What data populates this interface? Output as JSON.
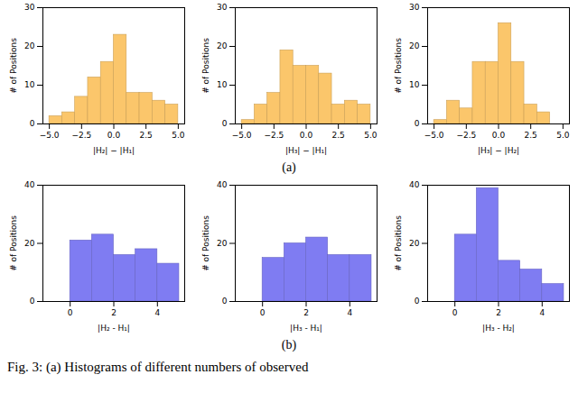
{
  "chart_data": [
    {
      "type": "histogram",
      "xlabel": "|H₂| − |H₁|",
      "ylabel": "# of Positions",
      "color": "#fbc66b",
      "bins": [
        -5,
        -4,
        -3,
        -2,
        -1,
        0,
        1,
        2,
        3,
        4,
        5
      ],
      "values": [
        2,
        3,
        7,
        12,
        16,
        23,
        8,
        8,
        6,
        5
      ],
      "xlim": [
        -5.5,
        5.5
      ],
      "ylim": [
        0,
        30
      ],
      "xticks": [
        {
          "value": -5,
          "label": "−5.0"
        },
        {
          "value": -2.5,
          "label": "−2.5"
        },
        {
          "value": 0,
          "label": "0.0"
        },
        {
          "value": 2.5,
          "label": "2.5"
        },
        {
          "value": 5,
          "label": "5.0"
        }
      ],
      "yticks": [
        0,
        10,
        20,
        30
      ]
    },
    {
      "type": "histogram",
      "xlabel": "|H₃| − |H₁|",
      "ylabel": "# of Positions",
      "color": "#fbc66b",
      "bins": [
        -5,
        -4,
        -3,
        -2,
        -1,
        0,
        1,
        2,
        3,
        4,
        5
      ],
      "values": [
        1,
        5,
        8,
        19,
        15,
        15,
        13,
        5,
        6,
        5
      ],
      "xlim": [
        -5.5,
        5.5
      ],
      "ylim": [
        0,
        30
      ],
      "xticks": [
        {
          "value": -5,
          "label": "−5.0"
        },
        {
          "value": -2.5,
          "label": "−2.5"
        },
        {
          "value": 0,
          "label": "0.0"
        },
        {
          "value": 2.5,
          "label": "2.5"
        },
        {
          "value": 5,
          "label": "5.0"
        }
      ],
      "yticks": [
        0,
        10,
        20,
        30
      ]
    },
    {
      "type": "histogram",
      "xlabel": "|H₃| − |H₂|",
      "ylabel": "# of Positions",
      "color": "#fbc66b",
      "bins": [
        -5,
        -4,
        -3,
        -2,
        -1,
        0,
        1,
        2,
        3,
        4
      ],
      "values": [
        1,
        6,
        4,
        16,
        16,
        26,
        16,
        5,
        3
      ],
      "xlim": [
        -5.5,
        5.5
      ],
      "ylim": [
        0,
        30
      ],
      "xticks": [
        {
          "value": -5,
          "label": "−5.0"
        },
        {
          "value": -2.5,
          "label": "−2.5"
        },
        {
          "value": 0,
          "label": "0.0"
        },
        {
          "value": 2.5,
          "label": "2.5"
        },
        {
          "value": 5,
          "label": "5.0"
        }
      ],
      "yticks": [
        0,
        10,
        20,
        30
      ]
    },
    {
      "type": "histogram",
      "xlabel": "|H₂ - H₁|",
      "ylabel": "# of Positions",
      "color": "#7f7cf2",
      "bins": [
        0,
        1,
        2,
        3,
        4,
        5
      ],
      "values": [
        21,
        23,
        16,
        18,
        13
      ],
      "xlim": [
        -1.25,
        5.25
      ],
      "ylim": [
        0,
        40
      ],
      "xticks": [
        0,
        2,
        4
      ],
      "yticks": [
        0,
        20,
        40
      ]
    },
    {
      "type": "histogram",
      "xlabel": "|H₃ - H₁|",
      "ylabel": "# of Positions",
      "color": "#7f7cf2",
      "bins": [
        0,
        1,
        2,
        3,
        4,
        5
      ],
      "values": [
        15,
        20,
        22,
        16,
        16
      ],
      "xlim": [
        -1.25,
        5.25
      ],
      "ylim": [
        0,
        40
      ],
      "xticks": [
        0,
        2,
        4
      ],
      "yticks": [
        0,
        20,
        40
      ]
    },
    {
      "type": "histogram",
      "xlabel": "|H₃ - H₂|",
      "ylabel": "# of Positions",
      "color": "#7f7cf2",
      "bins": [
        0,
        1,
        2,
        3,
        4,
        5
      ],
      "values": [
        23,
        39,
        14,
        11,
        6
      ],
      "xlim": [
        -1.25,
        5.25
      ],
      "ylim": [
        0,
        40
      ],
      "xticks": [
        0,
        2,
        4
      ],
      "yticks": [
        0,
        20,
        40
      ]
    }
  ],
  "panel_labels": [
    "(a)",
    "(b)"
  ],
  "caption": "Fig. 3: (a) Histograms of different numbers of observed"
}
